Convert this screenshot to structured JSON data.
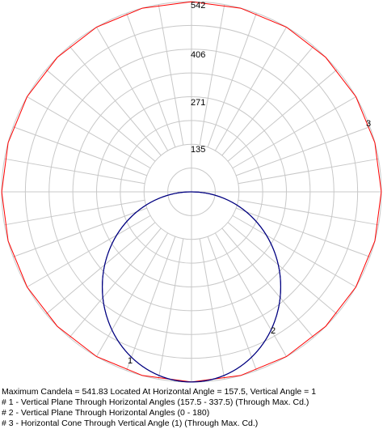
{
  "chart_data": {
    "type": "polar",
    "ring_labels": [
      "542",
      "406",
      "271",
      "135"
    ],
    "ring_values": [
      542,
      406,
      271,
      135
    ],
    "r_max": 542,
    "grid": true,
    "series": [
      {
        "label": "1",
        "color": "#000080",
        "shape": "circle-through-center",
        "max_candela": 541.83
      },
      {
        "label": "2",
        "color": "#000080",
        "shape": "circle-through-center",
        "max_candela": 541.83
      },
      {
        "label": "3",
        "color": "#ff0000",
        "shape": "cone-polygon",
        "value": 541.83
      }
    ],
    "annotations": [
      "Maximum Candela = 541.83   Located At Horizontal Angle = 157.5, Vertical Angle = 1",
      "# 1 - Vertical Plane Through Horizontal Angles (157.5 - 337.5) (Through Max. Cd.)",
      "# 2 - Vertical Plane Through Horizontal Angles (0 - 180)",
      "# 3 - Horizontal Cone Through Vertical Angle (1) (Through Max. Cd.)"
    ]
  }
}
